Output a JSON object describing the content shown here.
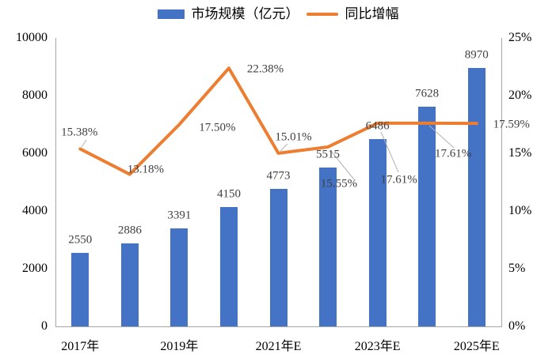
{
  "colors": {
    "bar": "#4472C4",
    "line": "#ED7D31",
    "data_label": "#3f3f3f",
    "axis_line": "#a6a6a6",
    "axis_text": "#000000",
    "leader_line": "#b3b3b3",
    "background": "#ffffff"
  },
  "chart_data": {
    "type": "combo",
    "title": "",
    "n_slots": 9,
    "x_tick_labels": [
      "2017年",
      "2019年",
      "2021年E",
      "2023年E",
      "2025年E"
    ],
    "x_tick_slots": [
      0,
      2,
      4,
      6,
      8
    ],
    "series": [
      {
        "name": "市场规模（亿元）",
        "chart": "bar",
        "axis": "left",
        "color": "#4472C4",
        "values": [
          2550,
          2886,
          3391,
          4150,
          4773,
          5515,
          6486,
          7628,
          8970
        ],
        "data_labels": [
          "2550",
          "2886",
          "3391",
          "4150",
          "4773",
          "5515",
          "6486",
          "7628",
          "8970"
        ]
      },
      {
        "name": "同比增幅",
        "chart": "line",
        "axis": "right",
        "color": "#ED7D31",
        "values": [
          15.38,
          13.18,
          17.5,
          22.38,
          15.01,
          15.55,
          17.61,
          17.61,
          17.59
        ],
        "data_labels": [
          "15.38%",
          "13.18%",
          "17.50%",
          "22.38%",
          "15.01%",
          "15.55%",
          "17.61%",
          "17.61%",
          "17.59%"
        ],
        "label_offsets": [
          [
            -1,
            -20
          ],
          [
            20,
            -6
          ],
          [
            48,
            4
          ],
          [
            46,
            2
          ],
          [
            19,
            -20
          ],
          [
            14,
            47
          ],
          [
            27,
            72
          ],
          [
            33,
            39
          ],
          [
            44,
            2
          ]
        ]
      }
    ],
    "left_axis": {
      "min": 0,
      "max": 10000,
      "tick_values": [
        0,
        2000,
        4000,
        6000,
        8000,
        10000
      ],
      "tick_labels": [
        "0",
        "2000",
        "4000",
        "6000",
        "8000",
        "10000"
      ]
    },
    "right_axis": {
      "min": 0,
      "max": 25,
      "tick_values": [
        0,
        5,
        10,
        15,
        20,
        25
      ],
      "tick_labels": [
        "0%",
        "5%",
        "10%",
        "15%",
        "20%",
        "25%"
      ]
    },
    "grid": false,
    "legend_position": "top",
    "leader_lines": [
      [
        109,
        177,
        103,
        186
      ],
      [
        354,
        191,
        363,
        182
      ],
      [
        417,
        190,
        447,
        227
      ],
      [
        481,
        167,
        503,
        218
      ],
      [
        542,
        159,
        573,
        187
      ]
    ]
  }
}
